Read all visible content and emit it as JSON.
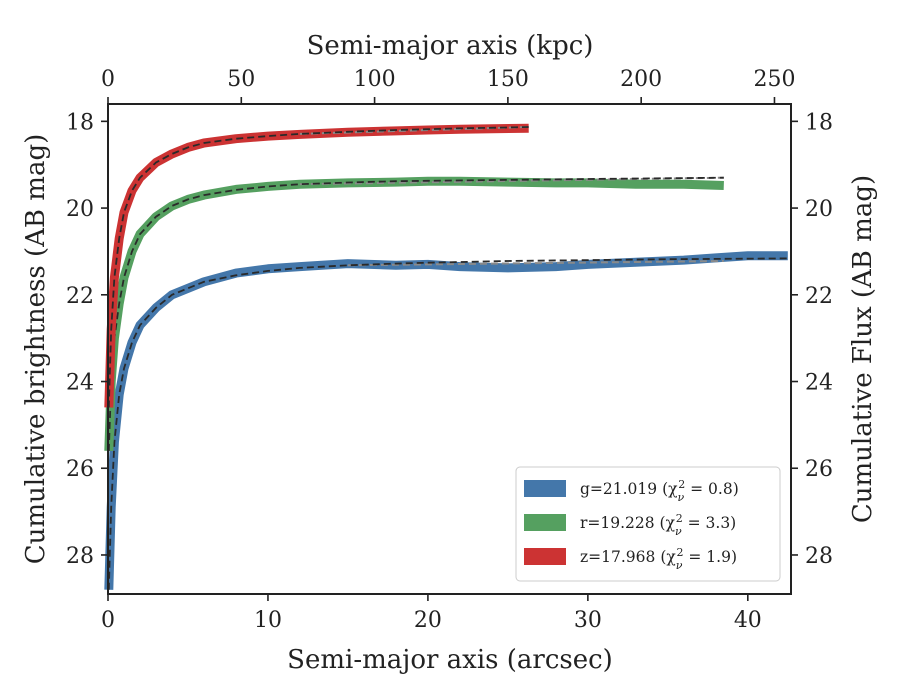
{
  "chart_data": {
    "type": "line",
    "xlabel_bottom": "Semi-major axis (arcsec)",
    "xlabel_top": "Semi-major axis (kpc)",
    "ylabel_left": "Cumulative brightness (AB mag)",
    "ylabel_right": "Cumulative Flux (AB mag)",
    "xlim": [
      0,
      42.7
    ],
    "ylim": [
      28.9,
      17.6
    ],
    "top_xlim": [
      0,
      256.2
    ],
    "x_ticks": [
      "0",
      "10",
      "20",
      "30",
      "40"
    ],
    "top_x_ticks": [
      "0",
      "50",
      "100",
      "150",
      "200",
      "250"
    ],
    "y_ticks": [
      "18",
      "20",
      "22",
      "24",
      "26",
      "28"
    ],
    "grid": false,
    "legend_position": "lower-right",
    "series": [
      {
        "name": "g=21.019",
        "chi_label": "(χ",
        "chi_sub": "ν",
        "chi_sup": "2",
        "chi_val": " = 0.8)",
        "color": "#4477aa",
        "total": 21.019,
        "x": [
          0.05,
          0.2,
          0.4,
          0.7,
          1.0,
          1.5,
          2.0,
          3.0,
          4.0,
          5.0,
          6.0,
          8.0,
          10.0,
          12.0,
          15.0,
          18.0,
          20.0,
          22.0,
          25.0,
          28.0,
          30.0,
          33.0,
          36.0,
          38.0,
          40.0,
          42.5
        ],
        "y": [
          28.8,
          26.9,
          25.4,
          24.3,
          23.7,
          23.1,
          22.7,
          22.3,
          22.0,
          21.85,
          21.7,
          21.5,
          21.4,
          21.35,
          21.28,
          21.32,
          21.3,
          21.35,
          21.38,
          21.35,
          21.3,
          21.25,
          21.2,
          21.15,
          21.1,
          21.1
        ],
        "fit_x": [
          0.05,
          0.2,
          0.4,
          0.7,
          1.0,
          1.5,
          2.0,
          3.0,
          4.0,
          5.0,
          6.0,
          8.0,
          10.0,
          12.0,
          15.0,
          18.0,
          20.0,
          25.0,
          30.0,
          35.0,
          42.5
        ],
        "fit_y": [
          28.8,
          26.9,
          25.4,
          24.3,
          23.7,
          23.1,
          22.7,
          22.3,
          22.0,
          21.85,
          21.7,
          21.55,
          21.45,
          21.38,
          21.32,
          21.28,
          21.26,
          21.22,
          21.2,
          21.18,
          21.16
        ],
        "fit_gray_end_x": 38.5,
        "fit_gray_end_y": 21.22
      },
      {
        "name": "r=19.228",
        "chi_label": "(χ",
        "chi_sub": "ν",
        "chi_sup": "2",
        "chi_val": " = 3.3)",
        "color": "#55a060",
        "total": 19.228,
        "x": [
          0.05,
          0.2,
          0.4,
          0.7,
          1.0,
          1.5,
          2.0,
          3.0,
          4.0,
          5.0,
          6.0,
          8.0,
          10.0,
          12.0,
          15.0,
          18.0,
          20.0,
          22.0,
          25.0,
          28.0,
          30.0,
          33.0,
          36.0,
          38.5
        ],
        "y": [
          25.6,
          24.0,
          23.0,
          22.2,
          21.6,
          21.0,
          20.6,
          20.2,
          19.95,
          19.8,
          19.7,
          19.57,
          19.5,
          19.45,
          19.42,
          19.4,
          19.38,
          19.38,
          19.4,
          19.42,
          19.42,
          19.45,
          19.45,
          19.48
        ],
        "fit_x": [
          0.05,
          0.2,
          0.4,
          0.7,
          1.0,
          1.5,
          2.0,
          3.0,
          4.0,
          5.0,
          6.0,
          8.0,
          10.0,
          12.0,
          15.0,
          18.0,
          20.0,
          25.0,
          30.0,
          38.5
        ],
        "fit_y": [
          25.6,
          24.0,
          23.0,
          22.2,
          21.6,
          21.0,
          20.6,
          20.2,
          19.95,
          19.8,
          19.7,
          19.58,
          19.5,
          19.45,
          19.41,
          19.38,
          19.37,
          19.35,
          19.33,
          19.3
        ],
        "fit_gray_end_x": 38.5,
        "fit_gray_end_y": 19.3
      },
      {
        "name": "z=17.968",
        "chi_label": "(χ",
        "chi_sub": "ν",
        "chi_sup": "2",
        "chi_val": " = 1.9)",
        "color": "#cc3333",
        "total": 17.968,
        "x": [
          0.05,
          0.2,
          0.4,
          0.7,
          1.0,
          1.5,
          2.0,
          3.0,
          4.0,
          5.0,
          6.0,
          8.0,
          10.0,
          12.0,
          15.0,
          18.0,
          20.0,
          22.0,
          24.0,
          26.3
        ],
        "y": [
          24.6,
          22.8,
          21.6,
          20.7,
          20.1,
          19.6,
          19.3,
          18.95,
          18.75,
          18.6,
          18.5,
          18.4,
          18.34,
          18.3,
          18.25,
          18.22,
          18.2,
          18.18,
          18.17,
          18.16
        ],
        "fit_x": [
          0.05,
          0.2,
          0.4,
          0.7,
          1.0,
          1.5,
          2.0,
          3.0,
          4.0,
          5.0,
          6.0,
          8.0,
          10.0,
          12.0,
          15.0,
          18.0,
          20.0,
          22.0,
          24.0,
          26.3
        ],
        "fit_y": [
          24.6,
          22.8,
          21.6,
          20.7,
          20.1,
          19.6,
          19.3,
          18.95,
          18.75,
          18.6,
          18.5,
          18.4,
          18.34,
          18.29,
          18.24,
          18.2,
          18.18,
          18.16,
          18.15,
          18.13
        ],
        "fit_gray_end_x": 26.3,
        "fit_gray_end_y": 18.13
      }
    ]
  }
}
